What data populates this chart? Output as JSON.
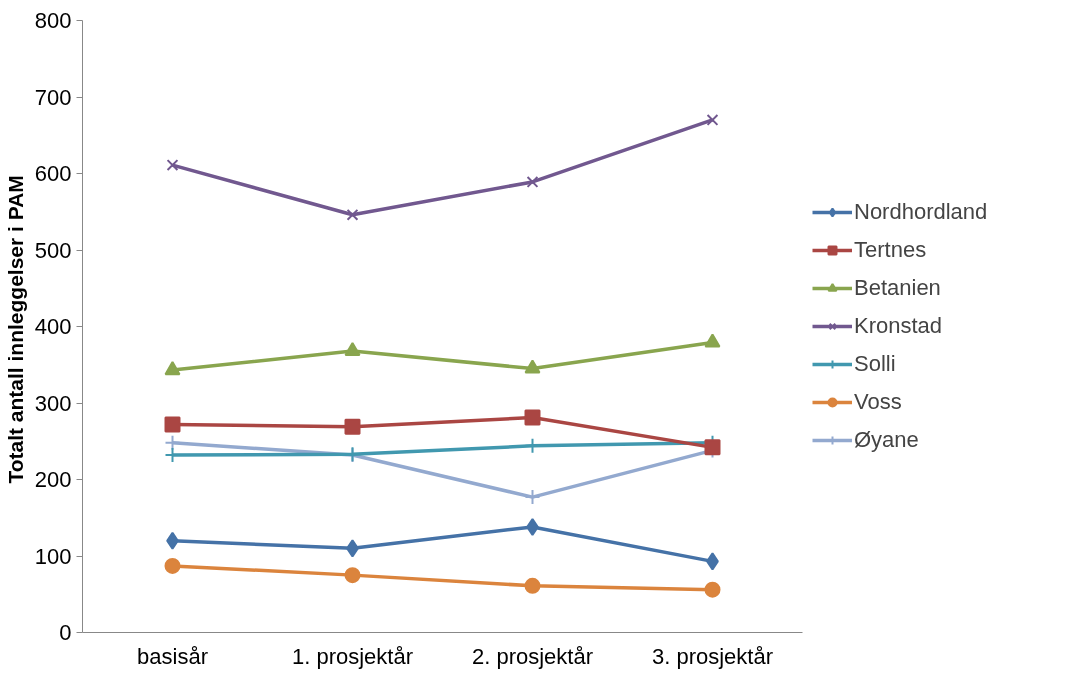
{
  "chart_data": {
    "type": "line",
    "ylabel": "Totalt antall  innleggelser i PAM",
    "categories": [
      "basisår",
      "1. prosjektår",
      "2. prosjektår",
      "3. prosjektår"
    ],
    "ylim": [
      0,
      800
    ],
    "yticks": [
      0,
      100,
      200,
      300,
      400,
      500,
      600,
      700,
      800
    ],
    "grid": false,
    "legend": "right",
    "line_style": "solid",
    "series": [
      {
        "name": "Nordhordland",
        "color": "#4572a7",
        "marker": "diamond",
        "values": [
          120,
          110,
          138,
          93
        ]
      },
      {
        "name": "Tertnes",
        "color": "#aa4643",
        "marker": "square",
        "values": [
          272,
          269,
          281,
          242
        ]
      },
      {
        "name": "Betanien",
        "color": "#89a54e",
        "marker": "triangle",
        "values": [
          343,
          368,
          345,
          379
        ]
      },
      {
        "name": "Kronstad",
        "color": "#71588f",
        "marker": "x",
        "values": [
          611,
          546,
          589,
          670
        ]
      },
      {
        "name": "Solli",
        "color": "#4198af",
        "marker": "cross",
        "values": [
          232,
          233,
          244,
          248
        ]
      },
      {
        "name": "Voss",
        "color": "#db843d",
        "marker": "circle",
        "values": [
          87,
          75,
          61,
          56
        ]
      },
      {
        "name": "Øyane",
        "color": "#93a9cf",
        "marker": "cross",
        "values": [
          248,
          232,
          177,
          238
        ]
      }
    ]
  }
}
